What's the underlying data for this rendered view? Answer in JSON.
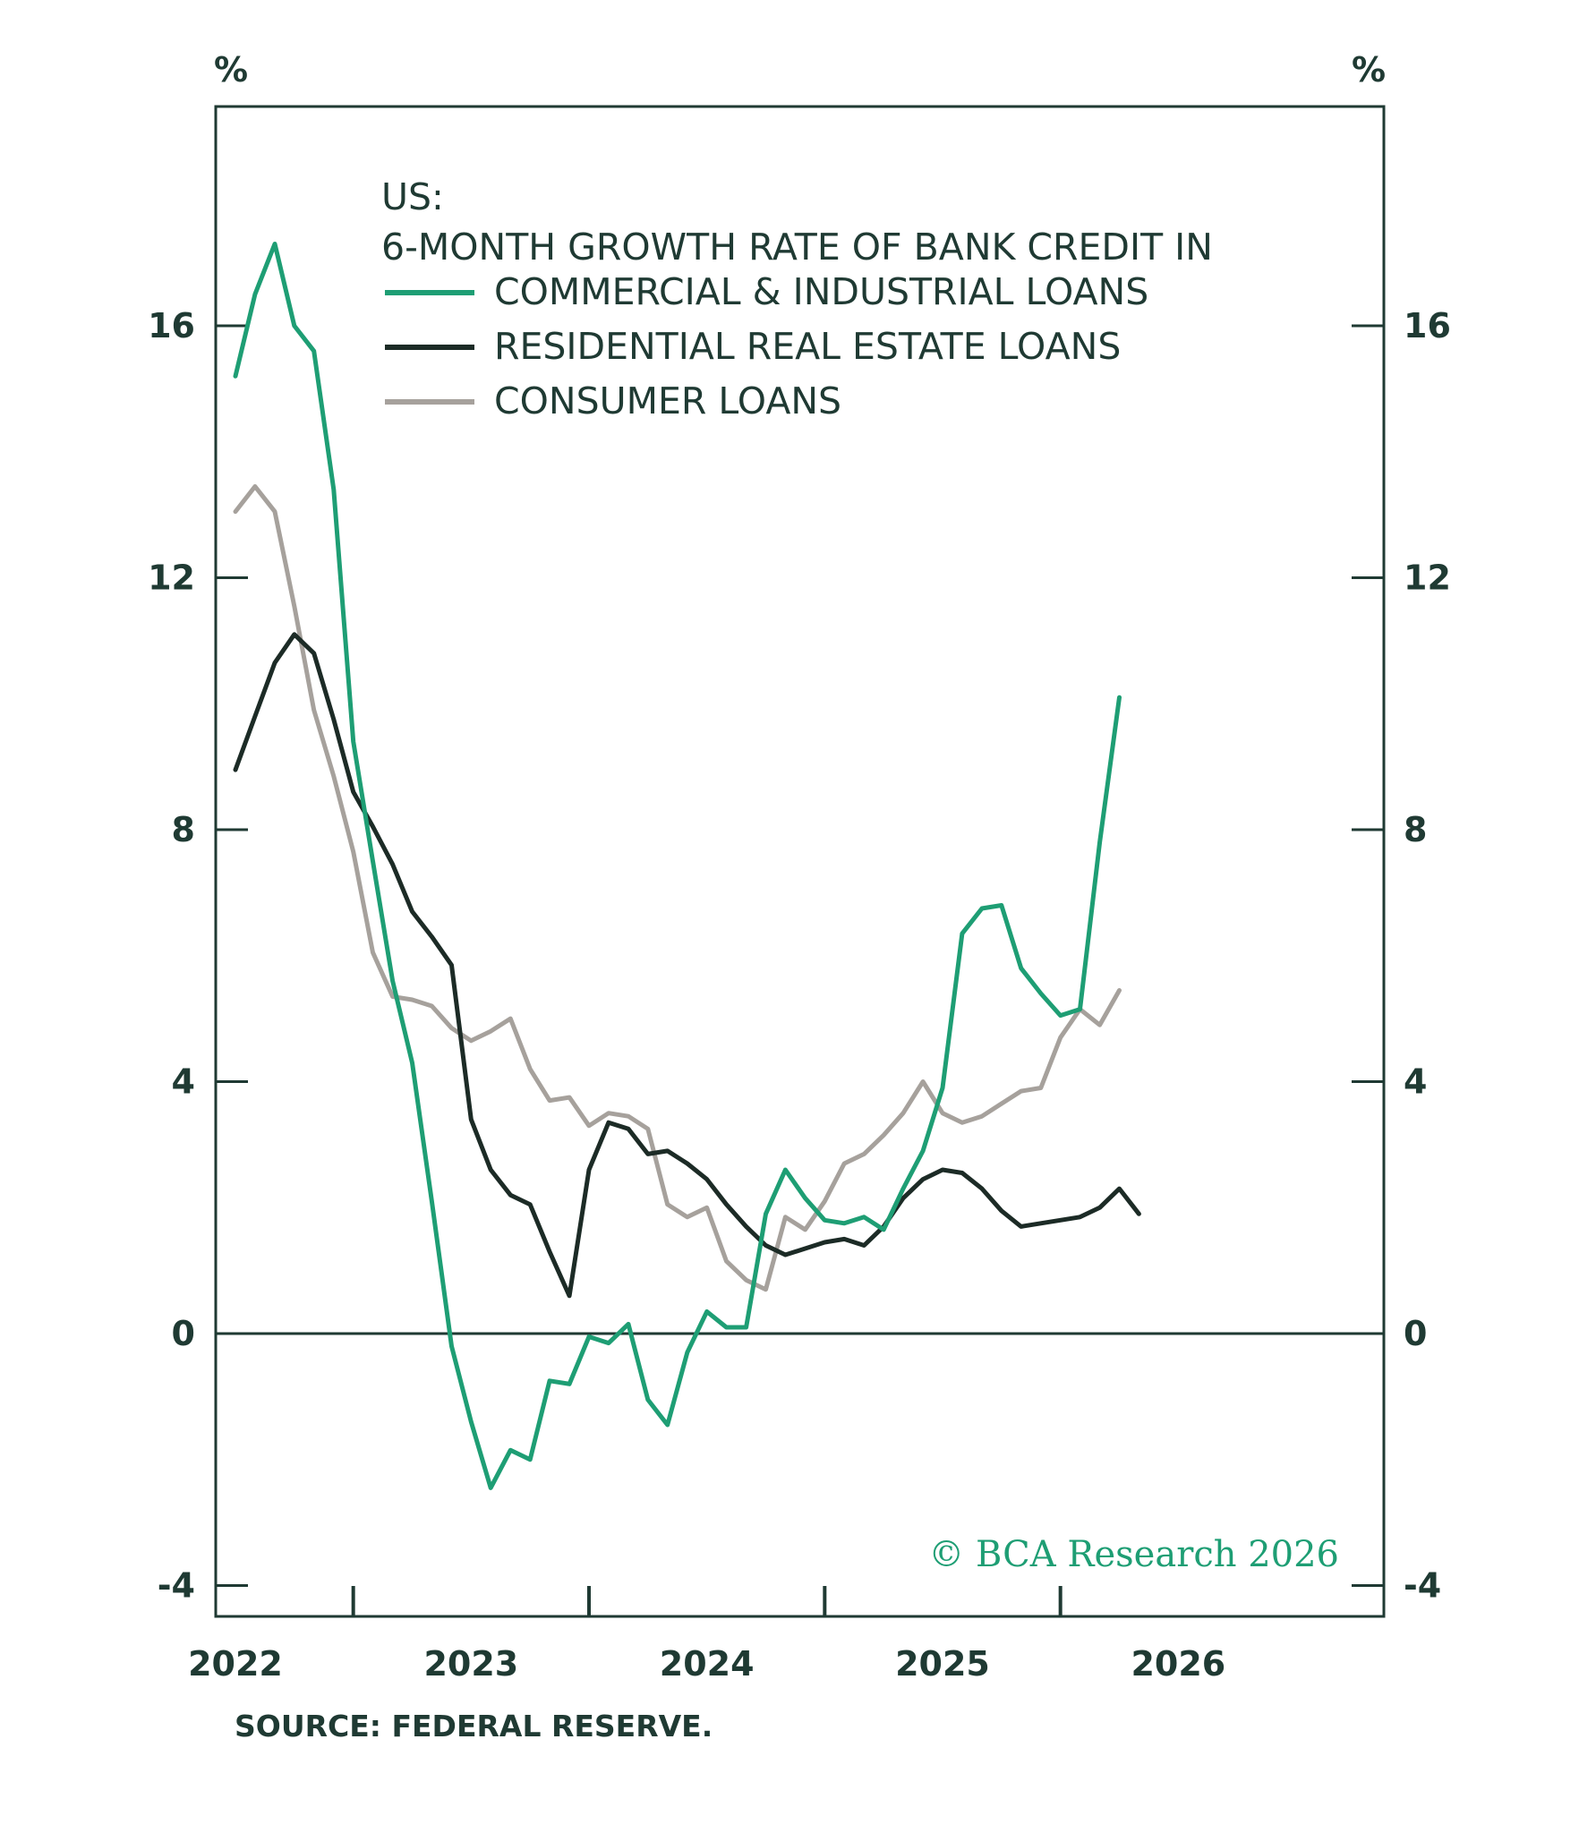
{
  "chart_data": {
    "type": "line",
    "title": "US:",
    "subtitle": "6-MONTH GROWTH RATE OF BANK CREDIT IN",
    "ylabel_left": "%",
    "ylabel_right": "%",
    "ylim": [
      -4.5,
      19
    ],
    "yticks": [
      -4,
      0,
      4,
      8,
      12,
      16
    ],
    "xlim": [
      2021.95,
      2026.15
    ],
    "xticks": [
      2022,
      2023,
      2024,
      2025,
      2026
    ],
    "xtick_labels": [
      "2022",
      "2023",
      "2024",
      "2025",
      "2026"
    ],
    "minor_xticks": [
      2022.5,
      2023.5,
      2024.5,
      2025.5
    ],
    "legend_position": "top",
    "grid": false,
    "zero_line": true,
    "series": [
      {
        "name": "COMMERCIAL & INDUSTRIAL LOANS",
        "color": "#1e9e74",
        "points": [
          [
            2022.0,
            15.2
          ],
          [
            2022.083,
            16.5
          ],
          [
            2022.167,
            17.3
          ],
          [
            2022.25,
            16.0
          ],
          [
            2022.333,
            15.6
          ],
          [
            2022.417,
            13.4
          ],
          [
            2022.5,
            9.4
          ],
          [
            2022.583,
            7.5
          ],
          [
            2022.667,
            5.6
          ],
          [
            2022.75,
            4.3
          ],
          [
            2022.833,
            2.1
          ],
          [
            2022.917,
            -0.2
          ],
          [
            2023.0,
            -1.4
          ],
          [
            2023.083,
            -2.45
          ],
          [
            2023.167,
            -1.85
          ],
          [
            2023.25,
            -2.0
          ],
          [
            2023.333,
            -0.75
          ],
          [
            2023.417,
            -0.8
          ],
          [
            2023.5,
            -0.05
          ],
          [
            2023.583,
            -0.15
          ],
          [
            2023.667,
            0.15
          ],
          [
            2023.75,
            -1.05
          ],
          [
            2023.833,
            -1.45
          ],
          [
            2023.917,
            -0.3
          ],
          [
            2024.0,
            0.35
          ],
          [
            2024.083,
            0.1
          ],
          [
            2024.167,
            0.1
          ],
          [
            2024.25,
            1.9
          ],
          [
            2024.333,
            2.6
          ],
          [
            2024.417,
            2.15
          ],
          [
            2024.5,
            1.8
          ],
          [
            2024.583,
            1.75
          ],
          [
            2024.667,
            1.85
          ],
          [
            2024.75,
            1.65
          ],
          [
            2024.833,
            2.3
          ],
          [
            2024.917,
            2.9
          ],
          [
            2025.0,
            3.9
          ],
          [
            2025.083,
            6.35
          ],
          [
            2025.167,
            6.75
          ],
          [
            2025.25,
            6.8
          ],
          [
            2025.333,
            5.8
          ],
          [
            2025.417,
            5.4
          ],
          [
            2025.5,
            5.05
          ],
          [
            2025.583,
            5.15
          ],
          [
            2025.667,
            7.8
          ],
          [
            2025.75,
            10.1
          ]
        ]
      },
      {
        "name": "RESIDENTIAL REAL ESTATE LOANS",
        "color": "#1c2b26",
        "points": [
          [
            2022.0,
            8.95
          ],
          [
            2022.083,
            9.8
          ],
          [
            2022.167,
            10.65
          ],
          [
            2022.25,
            11.1
          ],
          [
            2022.333,
            10.8
          ],
          [
            2022.417,
            9.75
          ],
          [
            2022.5,
            8.6
          ],
          [
            2022.583,
            8.05
          ],
          [
            2022.667,
            7.45
          ],
          [
            2022.75,
            6.7
          ],
          [
            2022.833,
            6.3
          ],
          [
            2022.917,
            5.85
          ],
          [
            2023.0,
            3.4
          ],
          [
            2023.083,
            2.6
          ],
          [
            2023.167,
            2.2
          ],
          [
            2023.25,
            2.05
          ],
          [
            2023.333,
            1.3
          ],
          [
            2023.417,
            0.6
          ],
          [
            2023.5,
            2.6
          ],
          [
            2023.583,
            3.35
          ],
          [
            2023.667,
            3.25
          ],
          [
            2023.75,
            2.85
          ],
          [
            2023.833,
            2.9
          ],
          [
            2023.917,
            2.7
          ],
          [
            2024.0,
            2.45
          ],
          [
            2024.083,
            2.05
          ],
          [
            2024.167,
            1.7
          ],
          [
            2024.25,
            1.4
          ],
          [
            2024.333,
            1.25
          ],
          [
            2024.417,
            1.35
          ],
          [
            2024.5,
            1.45
          ],
          [
            2024.583,
            1.5
          ],
          [
            2024.667,
            1.4
          ],
          [
            2024.75,
            1.7
          ],
          [
            2024.833,
            2.15
          ],
          [
            2024.917,
            2.45
          ],
          [
            2025.0,
            2.6
          ],
          [
            2025.083,
            2.55
          ],
          [
            2025.167,
            2.3
          ],
          [
            2025.25,
            1.95
          ],
          [
            2025.333,
            1.7
          ],
          [
            2025.417,
            1.75
          ],
          [
            2025.5,
            1.8
          ],
          [
            2025.583,
            1.85
          ],
          [
            2025.667,
            2.0
          ],
          [
            2025.75,
            2.3
          ],
          [
            2025.833,
            1.9
          ]
        ]
      },
      {
        "name": "CONSUMER LOANS",
        "color": "#a6a19c",
        "points": [
          [
            2022.0,
            13.05
          ],
          [
            2022.083,
            13.45
          ],
          [
            2022.167,
            13.05
          ],
          [
            2022.25,
            11.55
          ],
          [
            2022.333,
            9.9
          ],
          [
            2022.417,
            8.85
          ],
          [
            2022.5,
            7.65
          ],
          [
            2022.583,
            6.05
          ],
          [
            2022.667,
            5.35
          ],
          [
            2022.75,
            5.3
          ],
          [
            2022.833,
            5.2
          ],
          [
            2022.917,
            4.85
          ],
          [
            2023.0,
            4.65
          ],
          [
            2023.083,
            4.8
          ],
          [
            2023.167,
            5.0
          ],
          [
            2023.25,
            4.2
          ],
          [
            2023.333,
            3.7
          ],
          [
            2023.417,
            3.75
          ],
          [
            2023.5,
            3.3
          ],
          [
            2023.583,
            3.5
          ],
          [
            2023.667,
            3.45
          ],
          [
            2023.75,
            3.25
          ],
          [
            2023.833,
            2.05
          ],
          [
            2023.917,
            1.85
          ],
          [
            2024.0,
            2.0
          ],
          [
            2024.083,
            1.15
          ],
          [
            2024.167,
            0.85
          ],
          [
            2024.25,
            0.7
          ],
          [
            2024.333,
            1.85
          ],
          [
            2024.417,
            1.65
          ],
          [
            2024.5,
            2.1
          ],
          [
            2024.583,
            2.7
          ],
          [
            2024.667,
            2.85
          ],
          [
            2024.75,
            3.15
          ],
          [
            2024.833,
            3.5
          ],
          [
            2024.917,
            4.0
          ],
          [
            2025.0,
            3.5
          ],
          [
            2025.083,
            3.35
          ],
          [
            2025.167,
            3.45
          ],
          [
            2025.25,
            3.65
          ],
          [
            2025.333,
            3.85
          ],
          [
            2025.417,
            3.9
          ],
          [
            2025.5,
            4.7
          ],
          [
            2025.583,
            5.15
          ],
          [
            2025.667,
            4.9
          ],
          [
            2025.75,
            5.45
          ]
        ]
      }
    ]
  },
  "source": "SOURCE: FEDERAL RESERVE.",
  "credit": "© BCA Research 2026"
}
